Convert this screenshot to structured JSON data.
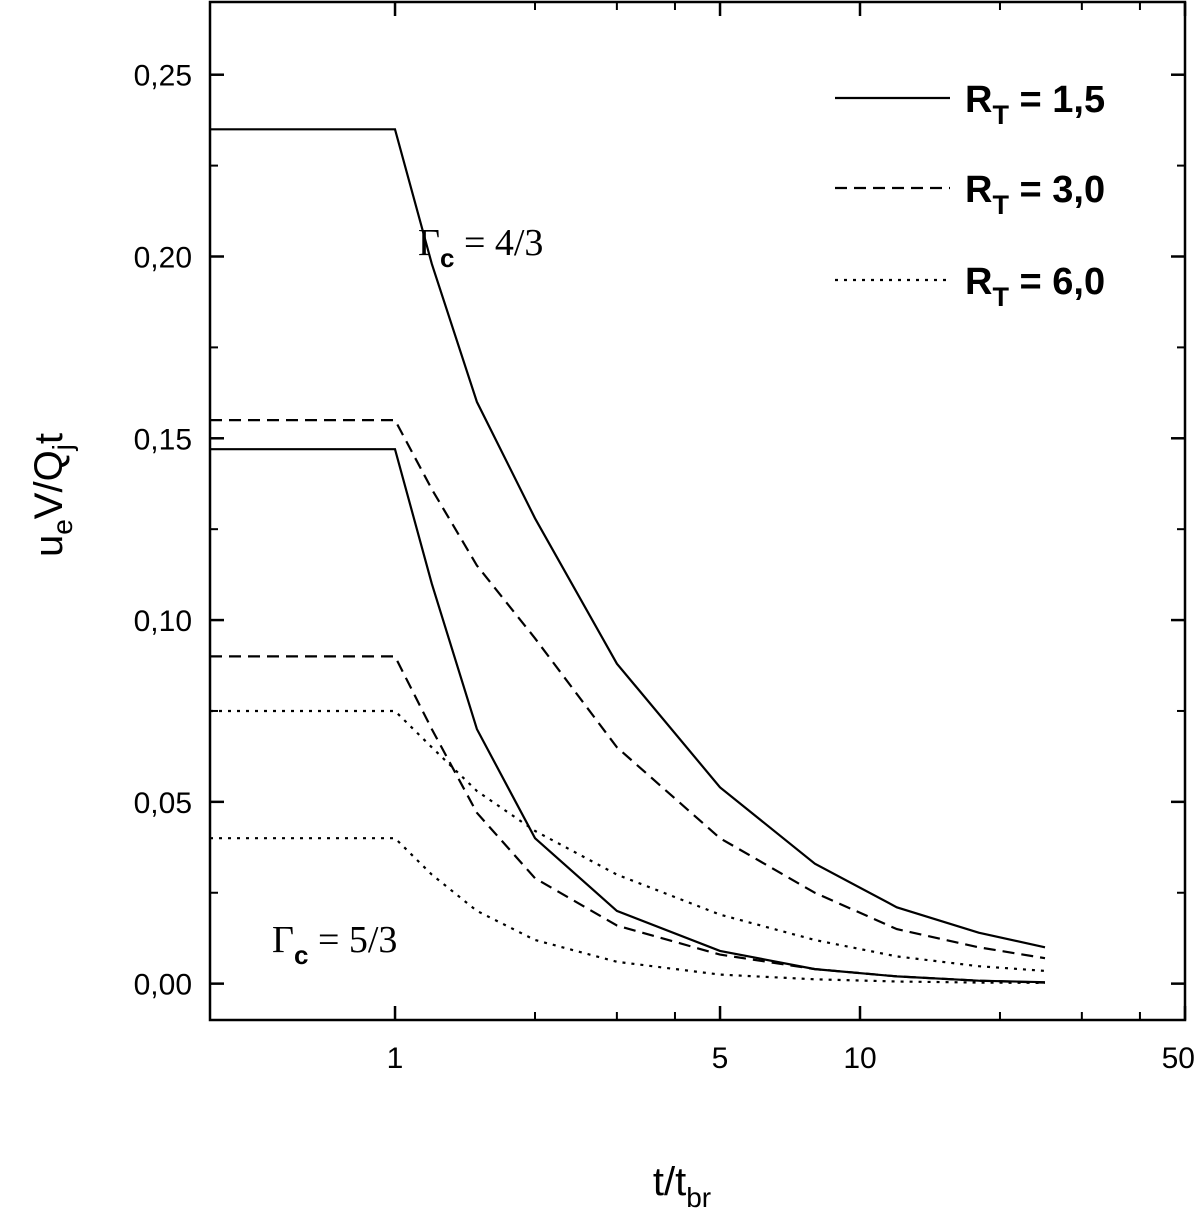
{
  "chart_data": {
    "type": "line",
    "xscale": "log",
    "xlim": [
      0.4,
      50
    ],
    "ylim": [
      -0.01,
      0.27
    ],
    "x_ticks": [
      {
        "value": 1,
        "label": "1"
      },
      {
        "value": 5,
        "label": "5"
      },
      {
        "value": 10,
        "label": "10"
      },
      {
        "value": 50,
        "label": "50"
      }
    ],
    "y_ticks": [
      {
        "value": 0.0,
        "label": "0,00"
      },
      {
        "value": 0.05,
        "label": "0,05"
      },
      {
        "value": 0.1,
        "label": "0,10"
      },
      {
        "value": 0.15,
        "label": "0,15"
      },
      {
        "value": 0.2,
        "label": "0,20"
      },
      {
        "value": 0.25,
        "label": "0,25"
      }
    ],
    "xlabel": {
      "main": "t/t",
      "sub": "br"
    },
    "ylabel": {
      "main1": "u",
      "sub1": "e",
      "main2": "V/Q",
      "sub2": "j",
      "main3": "t"
    },
    "legend": {
      "placement": "top-right",
      "entries": [
        {
          "main": "R",
          "sub": "T",
          "rest": " = 1,5",
          "style": "solid"
        },
        {
          "main": "R",
          "sub": "T",
          "rest": " = 3,0",
          "style": "dashed"
        },
        {
          "main": "R",
          "sub": "T",
          "rest": " = 6,0",
          "style": "dotted"
        }
      ]
    },
    "annotations": [
      {
        "main": "Γ",
        "sub": "c",
        "rest": " = 4/3"
      },
      {
        "main": "Γ",
        "sub": "c",
        "rest": " = 5/3"
      }
    ],
    "series": [
      {
        "group": "4/3",
        "style": "solid",
        "x": [
          0.4,
          1.0,
          1.2,
          1.5,
          2.0,
          3.0,
          5.0,
          8.0,
          12.0,
          18.0,
          25.0
        ],
        "y": [
          0.235,
          0.235,
          0.198,
          0.16,
          0.128,
          0.088,
          0.054,
          0.033,
          0.021,
          0.014,
          0.01
        ]
      },
      {
        "group": "4/3",
        "style": "dashed",
        "x": [
          0.4,
          1.0,
          1.2,
          1.5,
          2.0,
          3.0,
          5.0,
          8.0,
          12.0,
          18.0,
          25.0
        ],
        "y": [
          0.155,
          0.155,
          0.136,
          0.115,
          0.095,
          0.065,
          0.04,
          0.025,
          0.015,
          0.01,
          0.007
        ]
      },
      {
        "group": "4/3",
        "style": "dotted",
        "x": [
          0.4,
          1.0,
          1.2,
          1.5,
          2.0,
          3.0,
          5.0,
          8.0,
          12.0,
          18.0,
          25.0
        ],
        "y": [
          0.075,
          0.075,
          0.065,
          0.053,
          0.042,
          0.03,
          0.019,
          0.012,
          0.0075,
          0.0048,
          0.0035
        ]
      },
      {
        "group": "5/3",
        "style": "solid",
        "x": [
          0.4,
          1.0,
          1.2,
          1.5,
          2.0,
          3.0,
          5.0,
          8.0,
          12.0,
          18.0,
          25.0
        ],
        "y": [
          0.147,
          0.147,
          0.11,
          0.07,
          0.04,
          0.02,
          0.009,
          0.004,
          0.002,
          0.0008,
          0.0004
        ]
      },
      {
        "group": "5/3",
        "style": "dashed",
        "x": [
          0.4,
          1.0,
          1.2,
          1.5,
          2.0,
          3.0,
          5.0,
          8.0,
          12.0,
          18.0,
          25.0
        ],
        "y": [
          0.09,
          0.09,
          0.07,
          0.047,
          0.029,
          0.016,
          0.008,
          0.004,
          0.002,
          0.0008,
          0.0003
        ]
      },
      {
        "group": "5/3",
        "style": "dotted",
        "x": [
          0.4,
          1.0,
          1.2,
          1.5,
          2.0,
          3.0,
          5.0,
          8.0,
          12.0,
          18.0,
          25.0
        ],
        "y": [
          0.04,
          0.04,
          0.03,
          0.02,
          0.012,
          0.006,
          0.0025,
          0.0012,
          0.0006,
          0.0003,
          0.0002
        ]
      }
    ]
  }
}
